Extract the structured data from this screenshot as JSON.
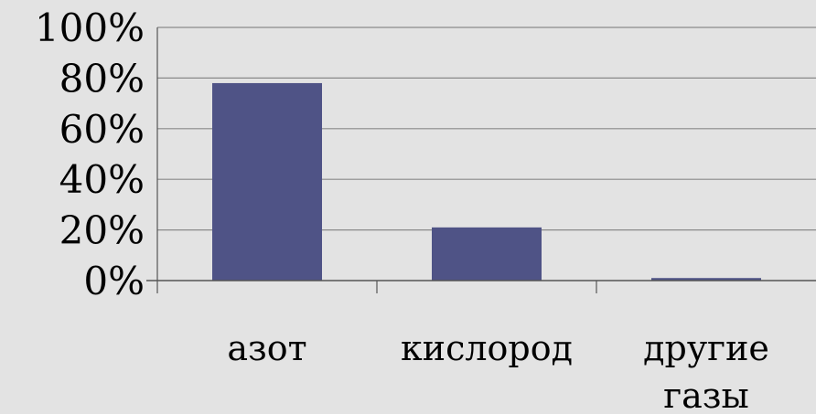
{
  "chart_data": {
    "type": "bar",
    "categories": [
      [
        "азот"
      ],
      [
        "кислород"
      ],
      [
        "другие",
        "газы"
      ]
    ],
    "values": [
      78,
      21,
      1
    ],
    "ylim": [
      0,
      100
    ],
    "yticks": [
      0,
      20,
      40,
      60,
      80,
      100
    ],
    "ytick_suffix": "%",
    "grid": true,
    "title": "",
    "xlabel": "",
    "ylabel": "",
    "colors": {
      "bar": "#4f5386",
      "background": "#e3e3e3",
      "grid": "#8a8a8a",
      "axis": "#555555"
    }
  }
}
